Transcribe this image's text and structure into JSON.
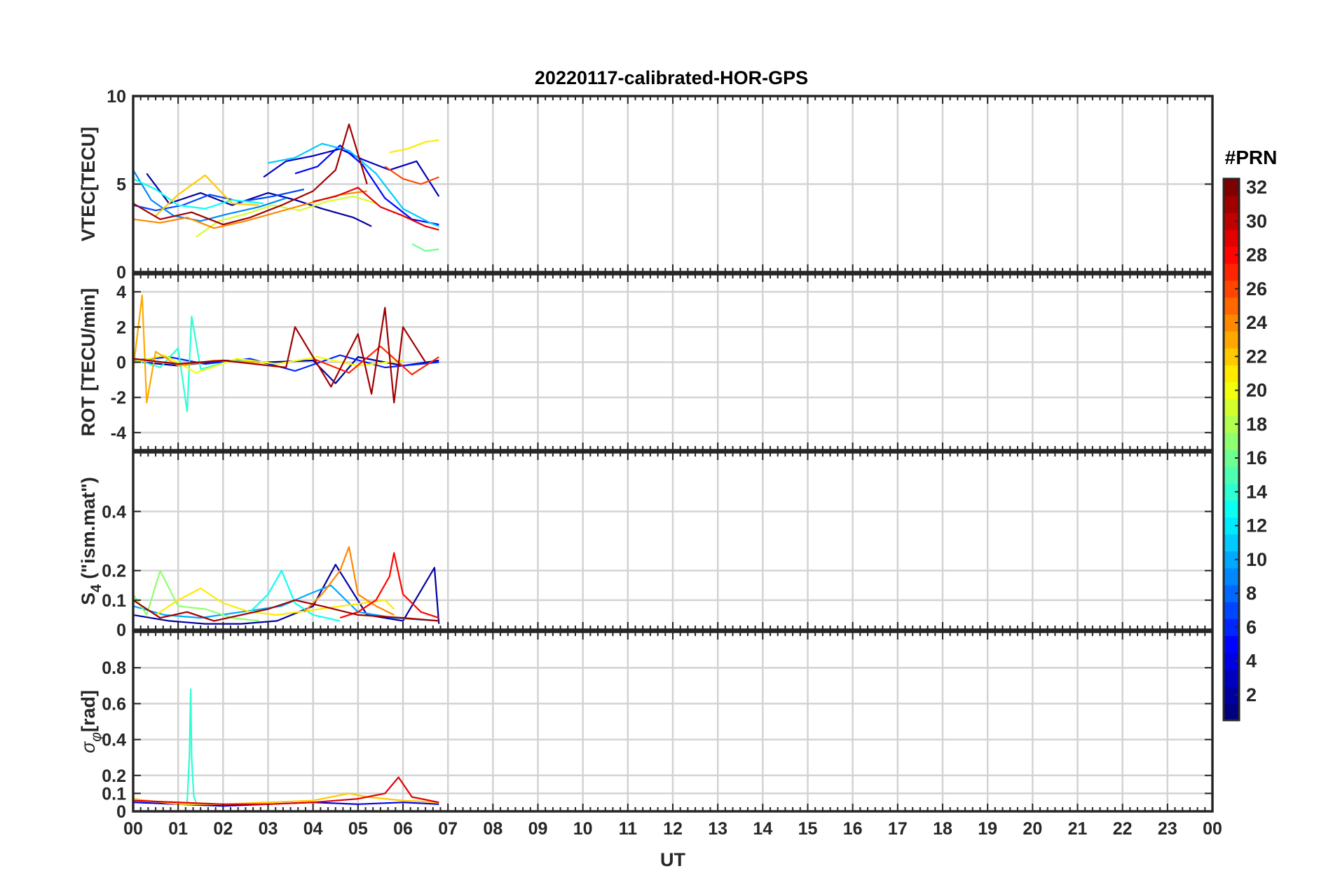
{
  "figure": {
    "title": "20220117-calibrated-HOR-GPS"
  },
  "colorbar": {
    "title": "#PRN",
    "range": [
      1,
      32
    ],
    "tick_labels": [
      "2",
      "4",
      "6",
      "8",
      "10",
      "12",
      "14",
      "16",
      "18",
      "20",
      "22",
      "24",
      "26",
      "28",
      "30",
      "32"
    ],
    "tick_values": [
      2,
      4,
      6,
      8,
      10,
      12,
      14,
      16,
      18,
      20,
      22,
      24,
      26,
      28,
      30,
      32
    ],
    "colormap": "jet",
    "levels": 32
  },
  "chart_data": [
    {
      "type": "line",
      "panel": "vtec",
      "title": "20220117-calibrated-HOR-GPS",
      "ylabel": "VTEC[TECU]",
      "xlabel": "",
      "xlim": [
        0,
        24
      ],
      "ylim": [
        0,
        10
      ],
      "y_ticks": [
        0,
        5,
        10
      ],
      "y_tick_labels": [
        "0",
        "5",
        "10"
      ],
      "grid": true,
      "series": [
        {
          "name": "PRN 2",
          "prn": 2,
          "x": [
            0.3,
            0.8,
            1.5,
            2.2,
            3.0,
            3.6,
            4.2,
            4.9,
            5.3
          ],
          "y": [
            5.6,
            3.9,
            4.5,
            3.8,
            4.5,
            4.1,
            3.6,
            3.1,
            2.6
          ]
        },
        {
          "name": "PRN 3",
          "prn": 3,
          "x": [
            2.9,
            3.4,
            4.0,
            4.6,
            5.1,
            5.7,
            6.3,
            6.8
          ],
          "y": [
            5.4,
            6.3,
            6.6,
            7.0,
            6.4,
            5.8,
            6.3,
            4.3
          ]
        },
        {
          "name": "PRN 5",
          "prn": 5,
          "x": [
            3.6,
            4.1,
            4.6,
            5.1,
            5.6,
            6.2,
            6.8
          ],
          "y": [
            5.6,
            6.0,
            7.2,
            6.1,
            4.2,
            3.0,
            2.7
          ]
        },
        {
          "name": "PRN 7",
          "prn": 7,
          "x": [
            0.0,
            0.5,
            1.1,
            1.7,
            2.4,
            3.1,
            3.8
          ],
          "y": [
            3.8,
            3.5,
            3.8,
            4.4,
            4.0,
            4.3,
            4.7
          ]
        },
        {
          "name": "PRN 9",
          "prn": 9,
          "x": [
            0.0,
            0.4,
            0.9,
            1.5,
            2.1,
            2.8,
            3.4
          ],
          "y": [
            5.8,
            4.1,
            3.2,
            2.9,
            3.3,
            3.7,
            4.2
          ]
        },
        {
          "name": "PRN 11",
          "prn": 11,
          "x": [
            3.0,
            3.6,
            4.2,
            4.8,
            5.4,
            6.0,
            6.6,
            6.8
          ],
          "y": [
            6.2,
            6.5,
            7.3,
            6.9,
            5.6,
            3.6,
            2.8,
            2.6
          ]
        },
        {
          "name": "PRN 13",
          "prn": 13,
          "x": [
            0.0,
            0.5,
            1.0,
            1.6,
            2.2,
            2.9
          ],
          "y": [
            5.3,
            4.7,
            3.8,
            3.6,
            4.1,
            3.9
          ]
        },
        {
          "name": "PRN 16",
          "prn": 16,
          "x": [
            6.2,
            6.5,
            6.8
          ],
          "y": [
            1.6,
            1.2,
            1.3
          ]
        },
        {
          "name": "PRN 19",
          "prn": 19,
          "x": [
            1.4,
            1.9,
            2.5,
            3.1,
            3.7,
            4.3,
            4.9,
            5.4
          ],
          "y": [
            2.0,
            2.9,
            3.3,
            3.8,
            3.5,
            4.0,
            4.3,
            3.9
          ]
        },
        {
          "name": "PRN 21",
          "prn": 21,
          "x": [
            5.7,
            6.1,
            6.5,
            6.8
          ],
          "y": [
            6.8,
            7.0,
            7.4,
            7.5
          ]
        },
        {
          "name": "PRN 22",
          "prn": 22,
          "x": [
            0.5,
            1.0,
            1.6,
            2.2,
            2.8
          ],
          "y": [
            3.2,
            4.4,
            5.5,
            3.9,
            3.8
          ]
        },
        {
          "name": "PRN 24",
          "prn": 24,
          "x": [
            0.0,
            0.6,
            1.2,
            1.8,
            2.5,
            3.2,
            3.9,
            4.6,
            5.2
          ],
          "y": [
            3.0,
            2.8,
            3.1,
            2.5,
            2.9,
            3.4,
            3.9,
            4.4,
            4.6
          ]
        },
        {
          "name": "PRN 26",
          "prn": 26,
          "x": [
            5.6,
            6.0,
            6.4,
            6.8
          ],
          "y": [
            6.0,
            5.3,
            5.0,
            5.4
          ]
        },
        {
          "name": "PRN 29",
          "prn": 29,
          "x": [
            4.0,
            4.5,
            5.0,
            5.5,
            6.0,
            6.5,
            6.8
          ],
          "y": [
            4.0,
            4.3,
            4.8,
            3.7,
            3.2,
            2.6,
            2.4
          ]
        },
        {
          "name": "PRN 31",
          "prn": 31,
          "x": [
            0.0,
            0.6,
            1.3,
            2.0,
            2.6,
            3.3,
            4.0,
            4.5,
            4.8,
            5.2
          ],
          "y": [
            3.9,
            3.0,
            3.4,
            2.7,
            3.1,
            3.8,
            4.6,
            5.8,
            8.4,
            5.0
          ]
        }
      ]
    },
    {
      "type": "line",
      "panel": "rot",
      "ylabel": "ROT [TECU/min]",
      "xlabel": "",
      "xlim": [
        0,
        24
      ],
      "ylim": [
        -5,
        5
      ],
      "y_ticks": [
        -4,
        -2,
        0,
        2,
        4
      ],
      "y_tick_labels": [
        "-4",
        "-2",
        "0",
        "2",
        "4"
      ],
      "grid": true,
      "series": [
        {
          "name": "PRN 2",
          "prn": 2,
          "x": [
            0.2,
            1.0,
            2.0,
            3.0,
            4.0,
            4.5,
            5.0,
            6.0,
            6.8
          ],
          "y": [
            0.0,
            -0.2,
            0.1,
            0.0,
            0.1,
            -1.2,
            0.3,
            -0.2,
            0.1
          ]
        },
        {
          "name": "PRN 6",
          "prn": 6,
          "x": [
            0.0,
            0.8,
            1.6,
            2.6,
            3.6,
            4.6,
            5.6,
            6.8
          ],
          "y": [
            0.1,
            0.3,
            -0.1,
            0.2,
            -0.5,
            0.4,
            -0.3,
            0.0
          ]
        },
        {
          "name": "PRN 14",
          "prn": 14,
          "x": [
            0.0,
            0.6,
            1.0,
            1.2,
            1.3,
            1.5,
            2.2,
            3.0
          ],
          "y": [
            0.2,
            -0.3,
            0.8,
            -2.8,
            2.6,
            -0.4,
            0.1,
            0.0
          ]
        },
        {
          "name": "PRN 20",
          "prn": 20,
          "x": [
            0.0,
            0.7,
            1.4,
            2.3,
            3.2,
            4.1,
            5.0,
            6.0
          ],
          "y": [
            0.0,
            0.4,
            -0.6,
            0.2,
            -0.1,
            0.3,
            -0.2,
            0.1
          ]
        },
        {
          "name": "PRN 23",
          "prn": 23,
          "x": [
            0.0,
            0.2,
            0.3,
            0.5,
            1.0,
            1.8,
            2.8
          ],
          "y": [
            -0.4,
            3.8,
            -2.3,
            0.6,
            -0.2,
            0.1,
            0.0
          ]
        },
        {
          "name": "PRN 27",
          "prn": 27,
          "x": [
            4.0,
            4.8,
            5.5,
            6.2,
            6.8
          ],
          "y": [
            0.2,
            -0.6,
            0.9,
            -0.7,
            0.3
          ]
        },
        {
          "name": "PRN 31",
          "prn": 31,
          "x": [
            0.0,
            1.0,
            2.0,
            3.4,
            3.6,
            4.4,
            5.0,
            5.3,
            5.6,
            5.8,
            6.0,
            6.5
          ],
          "y": [
            0.2,
            -0.1,
            0.1,
            -0.3,
            2.0,
            -1.4,
            1.6,
            -1.8,
            3.1,
            -2.3,
            2.0,
            0.0
          ]
        }
      ]
    },
    {
      "type": "line",
      "panel": "s4",
      "ylabel": "S4 (\"ism.mat\")",
      "ylabel_main": "S",
      "ylabel_sub": "4",
      "ylabel_rest": " (\"ism.mat\")",
      "xlabel": "",
      "xlim": [
        0,
        24
      ],
      "ylim": [
        0,
        0.6
      ],
      "y_ticks": [
        0,
        0.1,
        0.2,
        0.4
      ],
      "y_tick_labels": [
        "0",
        "0.1",
        "0.2",
        "0.4"
      ],
      "grid": true,
      "series": [
        {
          "name": "PRN 2",
          "prn": 2,
          "x": [
            0.0,
            0.8,
            1.6,
            2.4,
            3.2,
            4.0,
            4.5,
            5.2,
            6.0,
            6.7,
            6.8
          ],
          "y": [
            0.05,
            0.03,
            0.02,
            0.02,
            0.03,
            0.08,
            0.22,
            0.05,
            0.03,
            0.21,
            0.02
          ]
        },
        {
          "name": "PRN 10",
          "prn": 10,
          "x": [
            0.0,
            0.7,
            1.5,
            2.4,
            3.3,
            3.9,
            4.4,
            5.0,
            5.8,
            6.8
          ],
          "y": [
            0.08,
            0.05,
            0.04,
            0.06,
            0.08,
            0.12,
            0.15,
            0.06,
            0.04,
            0.03
          ]
        },
        {
          "name": "PRN 13",
          "prn": 13,
          "x": [
            2.6,
            3.0,
            3.3,
            3.6,
            4.0,
            4.6
          ],
          "y": [
            0.06,
            0.12,
            0.2,
            0.09,
            0.05,
            0.03
          ]
        },
        {
          "name": "PRN 17",
          "prn": 17,
          "x": [
            0.0,
            0.3,
            0.6,
            1.0,
            1.6,
            2.2,
            2.8
          ],
          "y": [
            0.12,
            0.05,
            0.2,
            0.08,
            0.07,
            0.04,
            0.03
          ]
        },
        {
          "name": "PRN 21",
          "prn": 21,
          "x": [
            0.5,
            1.0,
            1.5,
            2.0,
            2.6,
            3.2,
            5.6,
            5.8
          ],
          "y": [
            0.05,
            0.1,
            0.14,
            0.09,
            0.06,
            0.05,
            0.1,
            0.07
          ]
        },
        {
          "name": "PRN 24",
          "prn": 24,
          "x": [
            3.8,
            4.2,
            4.6,
            4.8,
            5.0,
            5.4,
            5.8
          ],
          "y": [
            0.06,
            0.12,
            0.2,
            0.28,
            0.12,
            0.08,
            0.05
          ]
        },
        {
          "name": "PRN 28",
          "prn": 28,
          "x": [
            4.6,
            5.0,
            5.4,
            5.7,
            5.8,
            6.0,
            6.4,
            6.8
          ],
          "y": [
            0.04,
            0.06,
            0.1,
            0.18,
            0.26,
            0.12,
            0.06,
            0.04
          ]
        },
        {
          "name": "PRN 31",
          "prn": 31,
          "x": [
            0.0,
            0.6,
            1.2,
            1.8,
            2.4,
            3.0,
            3.6,
            4.2,
            5.0,
            6.0,
            6.8
          ],
          "y": [
            0.1,
            0.04,
            0.06,
            0.03,
            0.05,
            0.07,
            0.1,
            0.08,
            0.05,
            0.04,
            0.03
          ]
        }
      ]
    },
    {
      "type": "line",
      "panel": "sigma_phi",
      "ylabel": "σφ[rad]",
      "ylabel_main": "σ",
      "ylabel_sub": "φ",
      "ylabel_rest": "[rad]",
      "xlabel": "UT",
      "xlim": [
        0,
        24
      ],
      "ylim": [
        0,
        1.0
      ],
      "y_ticks": [
        0,
        0.1,
        0.2,
        0.4,
        0.6,
        0.8
      ],
      "y_tick_labels": [
        "0",
        "0.1",
        "0.2",
        "0.4",
        "0.6",
        "0.8"
      ],
      "x_ticks": [
        0,
        1,
        2,
        3,
        4,
        5,
        6,
        7,
        8,
        9,
        10,
        11,
        12,
        13,
        14,
        15,
        16,
        17,
        18,
        19,
        20,
        21,
        22,
        23,
        24
      ],
      "x_tick_labels": [
        "00",
        "01",
        "02",
        "03",
        "04",
        "05",
        "06",
        "07",
        "08",
        "09",
        "10",
        "11",
        "12",
        "13",
        "14",
        "15",
        "16",
        "17",
        "18",
        "19",
        "20",
        "21",
        "22",
        "23",
        "00"
      ],
      "grid": true,
      "series": [
        {
          "name": "PRN 4",
          "prn": 4,
          "x": [
            0.0,
            1.0,
            2.0,
            3.0,
            4.0,
            5.0,
            6.0,
            6.8
          ],
          "y": [
            0.05,
            0.04,
            0.03,
            0.04,
            0.05,
            0.04,
            0.05,
            0.04
          ]
        },
        {
          "name": "PRN 14",
          "prn": 14,
          "x": [
            1.2,
            1.25,
            1.28,
            1.3,
            1.35,
            1.4
          ],
          "y": [
            0.05,
            0.3,
            0.68,
            0.3,
            0.08,
            0.05
          ]
        },
        {
          "name": "PRN 22",
          "prn": 22,
          "x": [
            0.0,
            1.0,
            2.0,
            3.0,
            4.0,
            4.8,
            5.2,
            6.0,
            6.8
          ],
          "y": [
            0.07,
            0.04,
            0.04,
            0.05,
            0.06,
            0.1,
            0.08,
            0.06,
            0.05
          ]
        },
        {
          "name": "PRN 29",
          "prn": 29,
          "x": [
            0.0,
            1.0,
            2.0,
            3.0,
            4.0,
            5.0,
            5.6,
            5.9,
            6.2,
            6.8
          ],
          "y": [
            0.06,
            0.05,
            0.04,
            0.04,
            0.05,
            0.07,
            0.1,
            0.19,
            0.08,
            0.05
          ]
        }
      ]
    }
  ]
}
